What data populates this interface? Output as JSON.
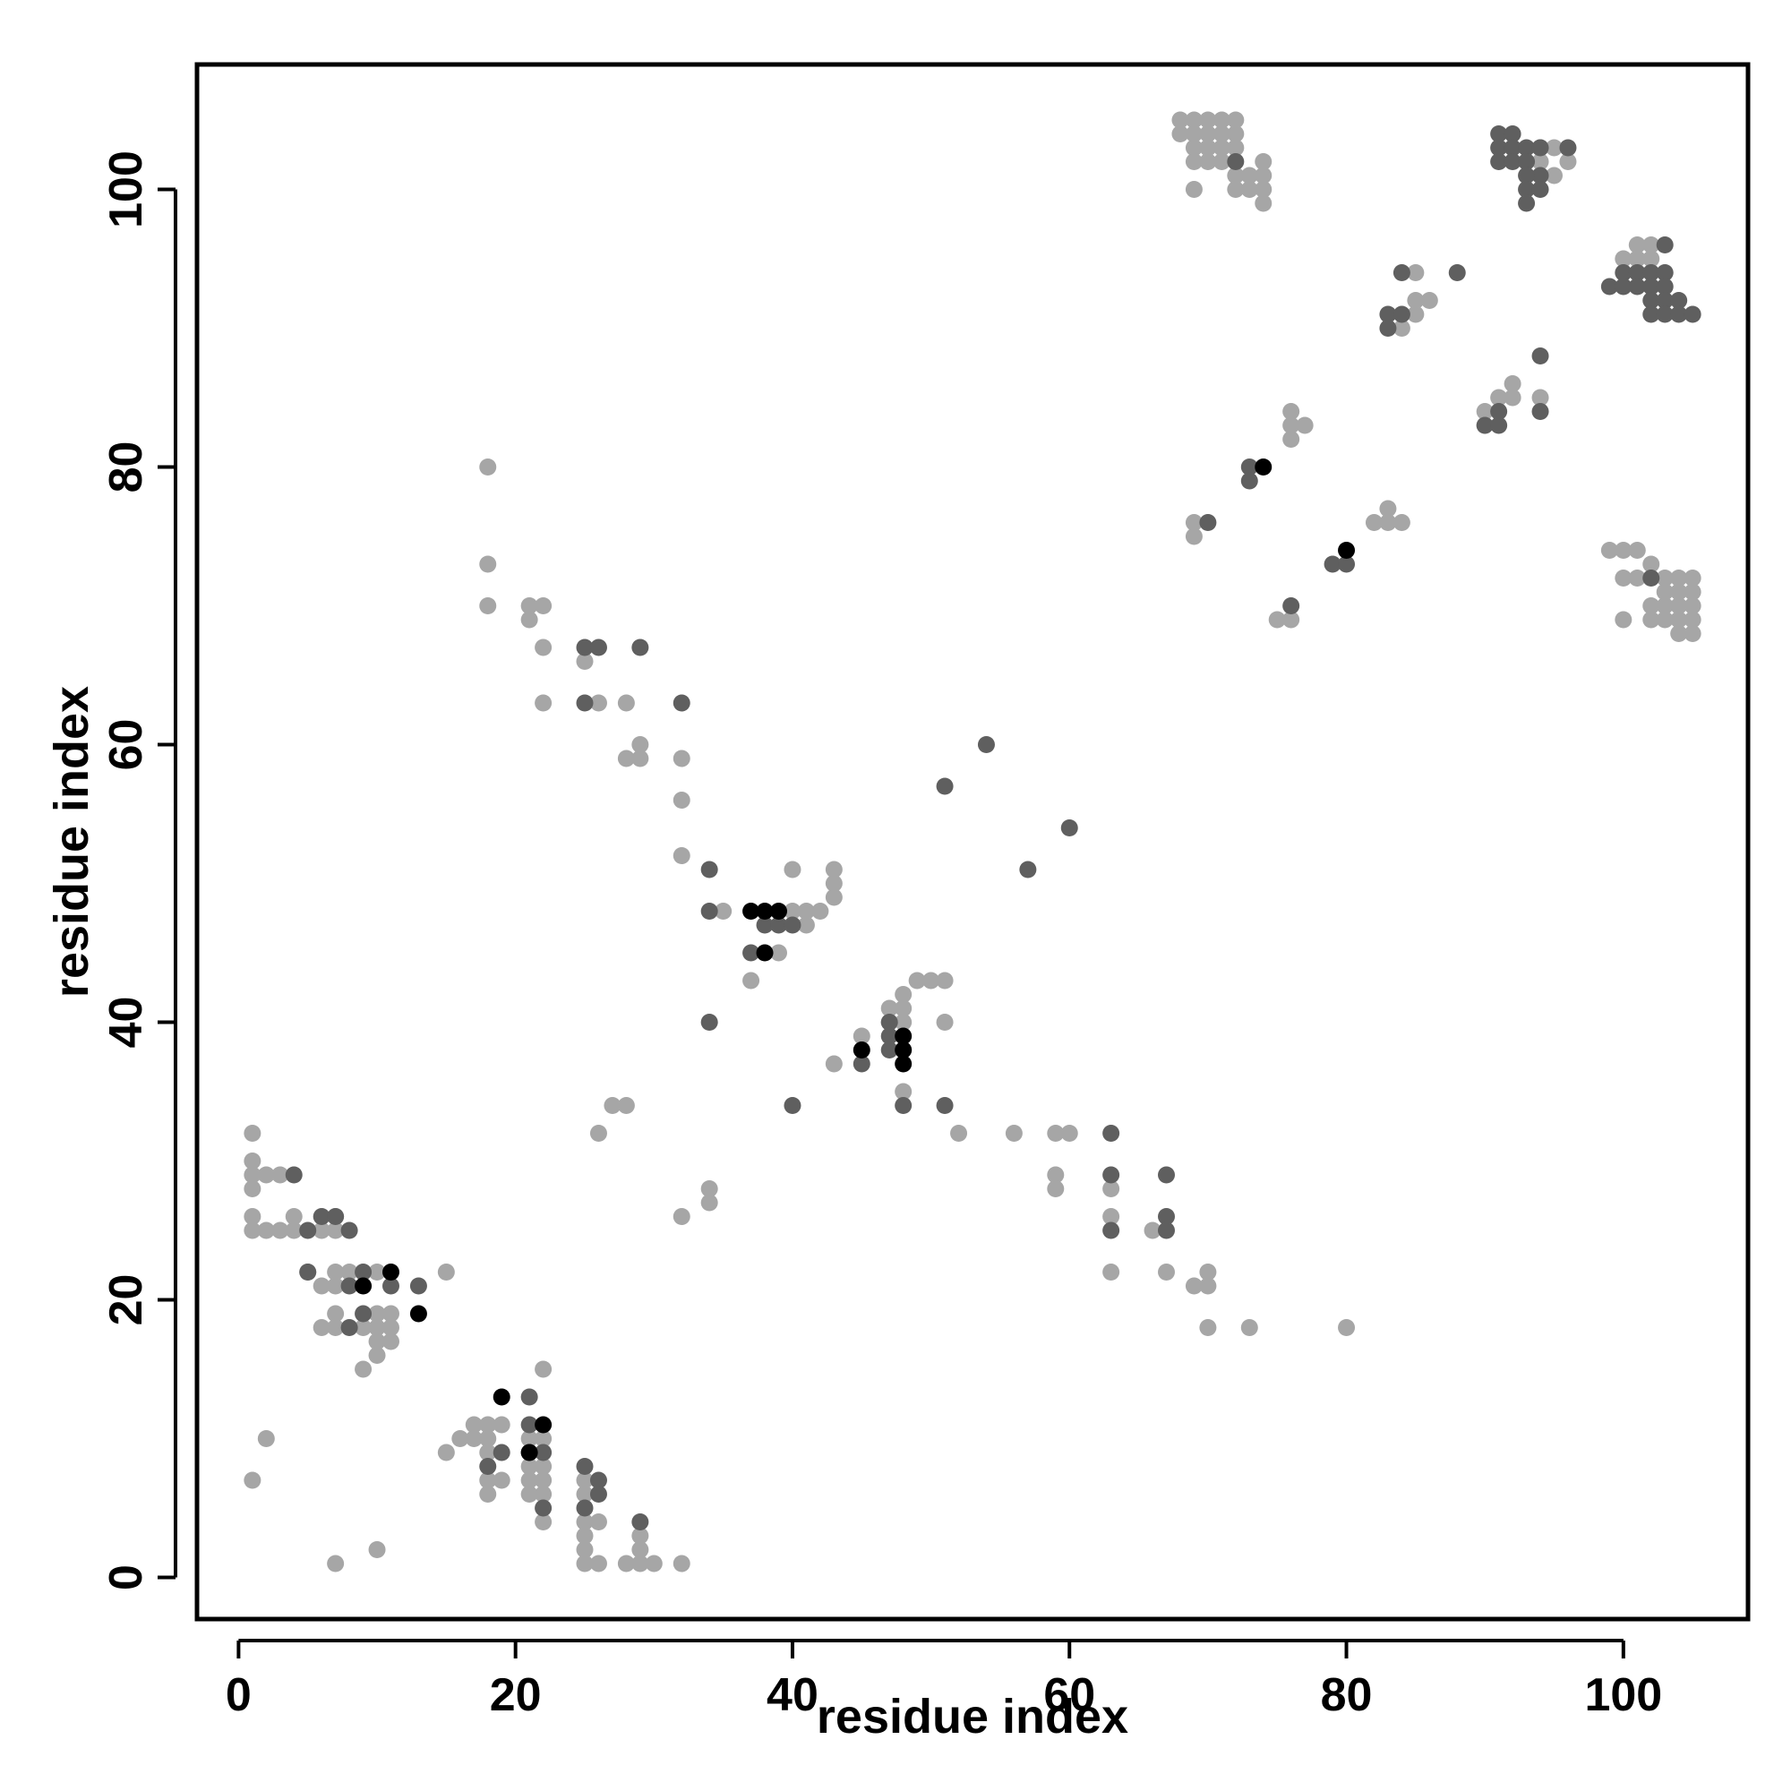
{
  "chart_data": {
    "type": "scatter",
    "title": "",
    "xlabel": "residue index",
    "ylabel": "residue index",
    "xlim": [
      -3,
      109
    ],
    "ylim": [
      -3,
      109
    ],
    "xticks": [
      0,
      20,
      40,
      60,
      80,
      100
    ],
    "yticks": [
      0,
      20,
      40,
      60,
      80,
      100
    ],
    "grid": false,
    "legend": "none",
    "colors": {
      "light": "#a6a6a6",
      "medium": "#5f5f5f",
      "dark": "#000000"
    },
    "series": [
      {
        "shade": "light",
        "points": [
          [
            1,
            32
          ],
          [
            1,
            30
          ],
          [
            1,
            29
          ],
          [
            1,
            28
          ],
          [
            2,
            29
          ],
          [
            3,
            29
          ],
          [
            1,
            26
          ],
          [
            1,
            25
          ],
          [
            2,
            25
          ],
          [
            3,
            25
          ],
          [
            4,
            25
          ],
          [
            4,
            26
          ],
          [
            6,
            25
          ],
          [
            7,
            25
          ],
          [
            7,
            26
          ],
          [
            5,
            22
          ],
          [
            7,
            22
          ],
          [
            8,
            22
          ],
          [
            6,
            21
          ],
          [
            7,
            21
          ],
          [
            10,
            22
          ],
          [
            15,
            22
          ],
          [
            7,
            19
          ],
          [
            6,
            18
          ],
          [
            7,
            18
          ],
          [
            9,
            18
          ],
          [
            10,
            19
          ],
          [
            11,
            19
          ],
          [
            10,
            18
          ],
          [
            11,
            18
          ],
          [
            10,
            17
          ],
          [
            11,
            17
          ],
          [
            10,
            16
          ],
          [
            9,
            15
          ],
          [
            1,
            7
          ],
          [
            2,
            10
          ],
          [
            7,
            1
          ],
          [
            10,
            2
          ],
          [
            15,
            9
          ],
          [
            16,
            10
          ],
          [
            17,
            10
          ],
          [
            17,
            11
          ],
          [
            18,
            11
          ],
          [
            19,
            11
          ],
          [
            18,
            10
          ],
          [
            18,
            9
          ],
          [
            18,
            7
          ],
          [
            19,
            7
          ],
          [
            18,
            6
          ],
          [
            21,
            10
          ],
          [
            22,
            10
          ],
          [
            21,
            8
          ],
          [
            22,
            8
          ],
          [
            21,
            7
          ],
          [
            22,
            7
          ],
          [
            21,
            6
          ],
          [
            22,
            6
          ],
          [
            22,
            15
          ],
          [
            22,
            4
          ],
          [
            25,
            7
          ],
          [
            25,
            6
          ],
          [
            25,
            4
          ],
          [
            26,
            4
          ],
          [
            25,
            3
          ],
          [
            25,
            2
          ],
          [
            25,
            1
          ],
          [
            26,
            1
          ],
          [
            28,
            1
          ],
          [
            29,
            1
          ],
          [
            29,
            2
          ],
          [
            29,
            3
          ],
          [
            30,
            1
          ],
          [
            32,
            1
          ],
          [
            18,
            80
          ],
          [
            18,
            73
          ],
          [
            18,
            70
          ],
          [
            21,
            70
          ],
          [
            21,
            69
          ],
          [
            22,
            70
          ],
          [
            22,
            67
          ],
          [
            22,
            63
          ],
          [
            25,
            66
          ],
          [
            26,
            63
          ],
          [
            28,
            63
          ],
          [
            28,
            59
          ],
          [
            29,
            59
          ],
          [
            29,
            60
          ],
          [
            32,
            59
          ],
          [
            32,
            56
          ],
          [
            32,
            52
          ],
          [
            35,
            48
          ],
          [
            37,
            43
          ],
          [
            39,
            45
          ],
          [
            40,
            51
          ],
          [
            40,
            48
          ],
          [
            41,
            48
          ],
          [
            41,
            47
          ],
          [
            42,
            48
          ],
          [
            43,
            51
          ],
          [
            43,
            50
          ],
          [
            43,
            49
          ],
          [
            43,
            37
          ],
          [
            45,
            39
          ],
          [
            47,
            41
          ],
          [
            47,
            40
          ],
          [
            48,
            42
          ],
          [
            48,
            41
          ],
          [
            48,
            40
          ],
          [
            48,
            35
          ],
          [
            49,
            43
          ],
          [
            50,
            43
          ],
          [
            51,
            43
          ],
          [
            51,
            40
          ],
          [
            52,
            32
          ],
          [
            56,
            32
          ],
          [
            26,
            32
          ],
          [
            27,
            34
          ],
          [
            28,
            34
          ],
          [
            32,
            26
          ],
          [
            34,
            28
          ],
          [
            34,
            27
          ],
          [
            59,
            32
          ],
          [
            60,
            32
          ],
          [
            59,
            29
          ],
          [
            59,
            28
          ],
          [
            63,
            28
          ],
          [
            63,
            26
          ],
          [
            66,
            25
          ],
          [
            63,
            22
          ],
          [
            67,
            22
          ],
          [
            69,
            21
          ],
          [
            70,
            22
          ],
          [
            70,
            21
          ],
          [
            70,
            18
          ],
          [
            73,
            18
          ],
          [
            80,
            18
          ],
          [
            68,
            105
          ],
          [
            69,
            105
          ],
          [
            70,
            105
          ],
          [
            71,
            105
          ],
          [
            72,
            105
          ],
          [
            68,
            104
          ],
          [
            69,
            104
          ],
          [
            70,
            104
          ],
          [
            71,
            104
          ],
          [
            72,
            104
          ],
          [
            69,
            103
          ],
          [
            70,
            103
          ],
          [
            71,
            103
          ],
          [
            72,
            103
          ],
          [
            69,
            102
          ],
          [
            70,
            102
          ],
          [
            71,
            102
          ],
          [
            74,
            102
          ],
          [
            69,
            100
          ],
          [
            72,
            101
          ],
          [
            72,
            100
          ],
          [
            73,
            101
          ],
          [
            73,
            100
          ],
          [
            74,
            101
          ],
          [
            74,
            100
          ],
          [
            74,
            99
          ],
          [
            69,
            76
          ],
          [
            69,
            75
          ],
          [
            75,
            69
          ],
          [
            76,
            69
          ],
          [
            76,
            84
          ],
          [
            76,
            83
          ],
          [
            77,
            83
          ],
          [
            76,
            82
          ],
          [
            82,
            76
          ],
          [
            83,
            77
          ],
          [
            83,
            76
          ],
          [
            84,
            76
          ],
          [
            84,
            90
          ],
          [
            85,
            91
          ],
          [
            85,
            92
          ],
          [
            86,
            92
          ],
          [
            85,
            94
          ],
          [
            90,
            84
          ],
          [
            90,
            83
          ],
          [
            91,
            85
          ],
          [
            92,
            86
          ],
          [
            92,
            85
          ],
          [
            94,
            85
          ],
          [
            94,
            102
          ],
          [
            94,
            103
          ],
          [
            95,
            103
          ],
          [
            95,
            101
          ],
          [
            96,
            102
          ],
          [
            100,
            95
          ],
          [
            101,
            95
          ],
          [
            101,
            96
          ],
          [
            102,
            96
          ],
          [
            102,
            95
          ],
          [
            102,
            93
          ],
          [
            99,
            74
          ],
          [
            100,
            74
          ],
          [
            101,
            74
          ],
          [
            100,
            72
          ],
          [
            101,
            72
          ],
          [
            102,
            73
          ],
          [
            100,
            69
          ],
          [
            103,
            72
          ],
          [
            104,
            72
          ],
          [
            105,
            72
          ],
          [
            103,
            71
          ],
          [
            104,
            71
          ],
          [
            105,
            71
          ],
          [
            102,
            70
          ],
          [
            103,
            70
          ],
          [
            104,
            70
          ],
          [
            105,
            70
          ],
          [
            102,
            69
          ],
          [
            103,
            69
          ],
          [
            104,
            69
          ],
          [
            105,
            69
          ],
          [
            104,
            68
          ],
          [
            105,
            68
          ]
        ]
      },
      {
        "shade": "medium",
        "points": [
          [
            4,
            29
          ],
          [
            5,
            25
          ],
          [
            6,
            26
          ],
          [
            7,
            26
          ],
          [
            8,
            25
          ],
          [
            5,
            22
          ],
          [
            9,
            22
          ],
          [
            8,
            21
          ],
          [
            11,
            21
          ],
          [
            13,
            21
          ],
          [
            9,
            19
          ],
          [
            8,
            18
          ],
          [
            18,
            8
          ],
          [
            19,
            9
          ],
          [
            21,
            13
          ],
          [
            21,
            11
          ],
          [
            21,
            9
          ],
          [
            22,
            9
          ],
          [
            22,
            5
          ],
          [
            25,
            8
          ],
          [
            26,
            7
          ],
          [
            26,
            6
          ],
          [
            25,
            5
          ],
          [
            29,
            4
          ],
          [
            25,
            67
          ],
          [
            26,
            67
          ],
          [
            25,
            63
          ],
          [
            29,
            67
          ],
          [
            32,
            63
          ],
          [
            34,
            51
          ],
          [
            34,
            48
          ],
          [
            34,
            40
          ],
          [
            37,
            45
          ],
          [
            38,
            47
          ],
          [
            39,
            47
          ],
          [
            40,
            47
          ],
          [
            40,
            34
          ],
          [
            45,
            37
          ],
          [
            47,
            40
          ],
          [
            47,
            39
          ],
          [
            47,
            38
          ],
          [
            48,
            38
          ],
          [
            48,
            34
          ],
          [
            51,
            34
          ],
          [
            51,
            57
          ],
          [
            54,
            60
          ],
          [
            57,
            51
          ],
          [
            60,
            54
          ],
          [
            63,
            32
          ],
          [
            63,
            29
          ],
          [
            63,
            25
          ],
          [
            67,
            29
          ],
          [
            67,
            26
          ],
          [
            67,
            25
          ],
          [
            70,
            76
          ],
          [
            73,
            80
          ],
          [
            73,
            79
          ],
          [
            76,
            70
          ],
          [
            79,
            73
          ],
          [
            80,
            73
          ],
          [
            72,
            102
          ],
          [
            83,
            91
          ],
          [
            84,
            91
          ],
          [
            83,
            90
          ],
          [
            84,
            94
          ],
          [
            88,
            94
          ],
          [
            91,
            104
          ],
          [
            92,
            104
          ],
          [
            91,
            103
          ],
          [
            92,
            103
          ],
          [
            93,
            103
          ],
          [
            94,
            103
          ],
          [
            91,
            102
          ],
          [
            92,
            102
          ],
          [
            93,
            102
          ],
          [
            94,
            101
          ],
          [
            93,
            101
          ],
          [
            93,
            100
          ],
          [
            94,
            100
          ],
          [
            93,
            99
          ],
          [
            96,
            103
          ],
          [
            91,
            84
          ],
          [
            90,
            83
          ],
          [
            91,
            83
          ],
          [
            94,
            88
          ],
          [
            94,
            84
          ],
          [
            99,
            93
          ],
          [
            100,
            94
          ],
          [
            100,
            93
          ],
          [
            101,
            94
          ],
          [
            101,
            93
          ],
          [
            102,
            94
          ],
          [
            102,
            93
          ],
          [
            103,
            96
          ],
          [
            103,
            94
          ],
          [
            103,
            93
          ],
          [
            102,
            92
          ],
          [
            103,
            92
          ],
          [
            104,
            92
          ],
          [
            102,
            91
          ],
          [
            103,
            91
          ],
          [
            104,
            91
          ],
          [
            105,
            91
          ],
          [
            102,
            72
          ]
        ]
      },
      {
        "shade": "dark",
        "points": [
          [
            9,
            21
          ],
          [
            11,
            22
          ],
          [
            13,
            19
          ],
          [
            19,
            13
          ],
          [
            21,
            9
          ],
          [
            22,
            11
          ],
          [
            37,
            48
          ],
          [
            38,
            48
          ],
          [
            39,
            48
          ],
          [
            38,
            45
          ],
          [
            45,
            38
          ],
          [
            48,
            39
          ],
          [
            48,
            38
          ],
          [
            48,
            37
          ],
          [
            74,
            80
          ],
          [
            80,
            74
          ]
        ]
      }
    ]
  }
}
